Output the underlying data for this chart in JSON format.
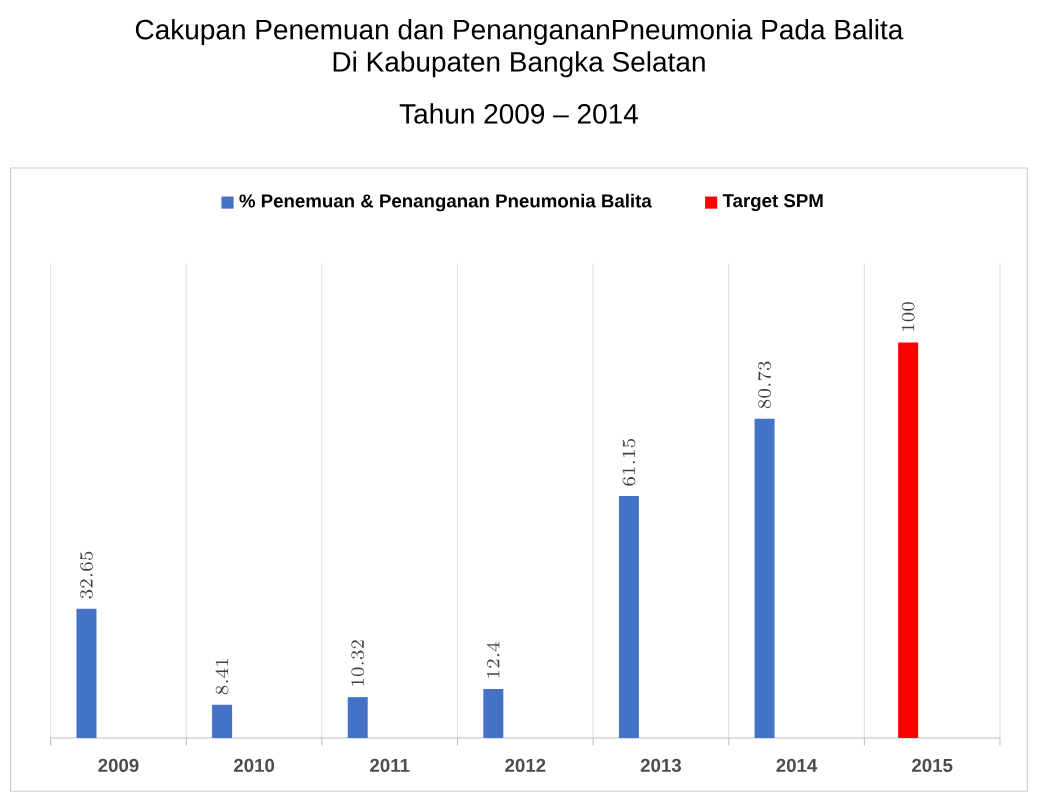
{
  "chart_data": {
    "type": "bar",
    "title": "Cakupan Penemuan dan PenangananPneumonia Pada Balita",
    "subtitle": "Di Kabupaten Bangka Selatan\nTahun 2009 – 2014",
    "categories": [
      "2009",
      "2010",
      "2011",
      "2012",
      "2013",
      "2014",
      "2015"
    ],
    "series": [
      {
        "name": "% Penemuan & Penanganan Pneumonia Balita",
        "color": "#4472c4",
        "values": [
          32.65,
          8.41,
          10.32,
          12.4,
          61.15,
          80.73,
          null
        ]
      },
      {
        "name": "Target SPM",
        "color": "#ff0000",
        "values": [
          null,
          null,
          null,
          null,
          null,
          null,
          100
        ]
      }
    ],
    "data_labels": true,
    "grid": "x",
    "legend": "top",
    "tick_labels": "x"
  }
}
